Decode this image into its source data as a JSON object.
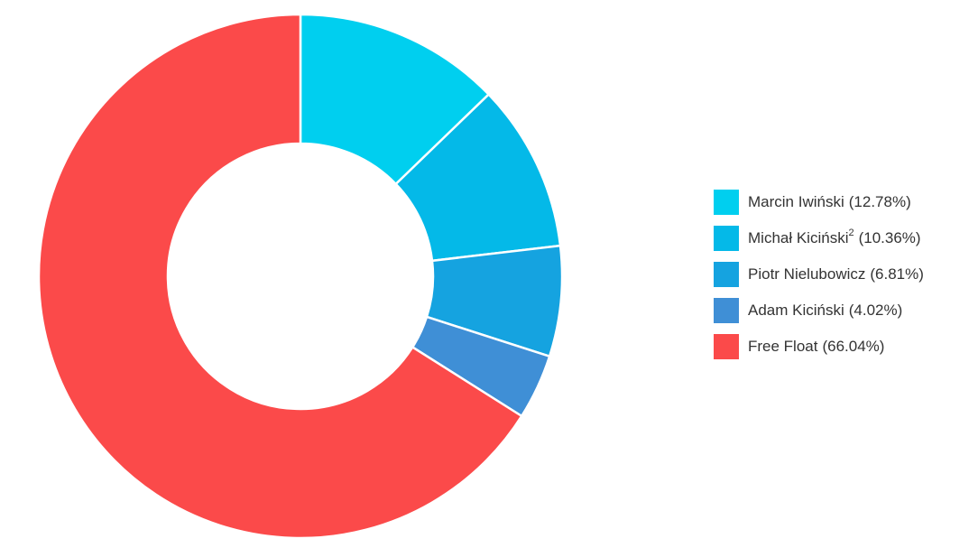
{
  "chart_data": {
    "type": "donut",
    "categories": [
      "Marcin Iwiński",
      "Michał Kiciński",
      "Piotr Nielubowicz",
      "Adam Kiciński",
      "Free Float"
    ],
    "category_superscripts": [
      null,
      "2",
      null,
      null,
      null
    ],
    "values": [
      12.78,
      10.36,
      6.81,
      4.02,
      66.04
    ],
    "value_labels": [
      "(12.78%)",
      "(10.36%)",
      "(6.81%)",
      "(4.02%)",
      "(66.04%)"
    ],
    "colors": [
      "#00cfef",
      "#04b9e8",
      "#15a3e0",
      "#3f8fd6",
      "#fb4a4a"
    ],
    "legend": "right"
  }
}
